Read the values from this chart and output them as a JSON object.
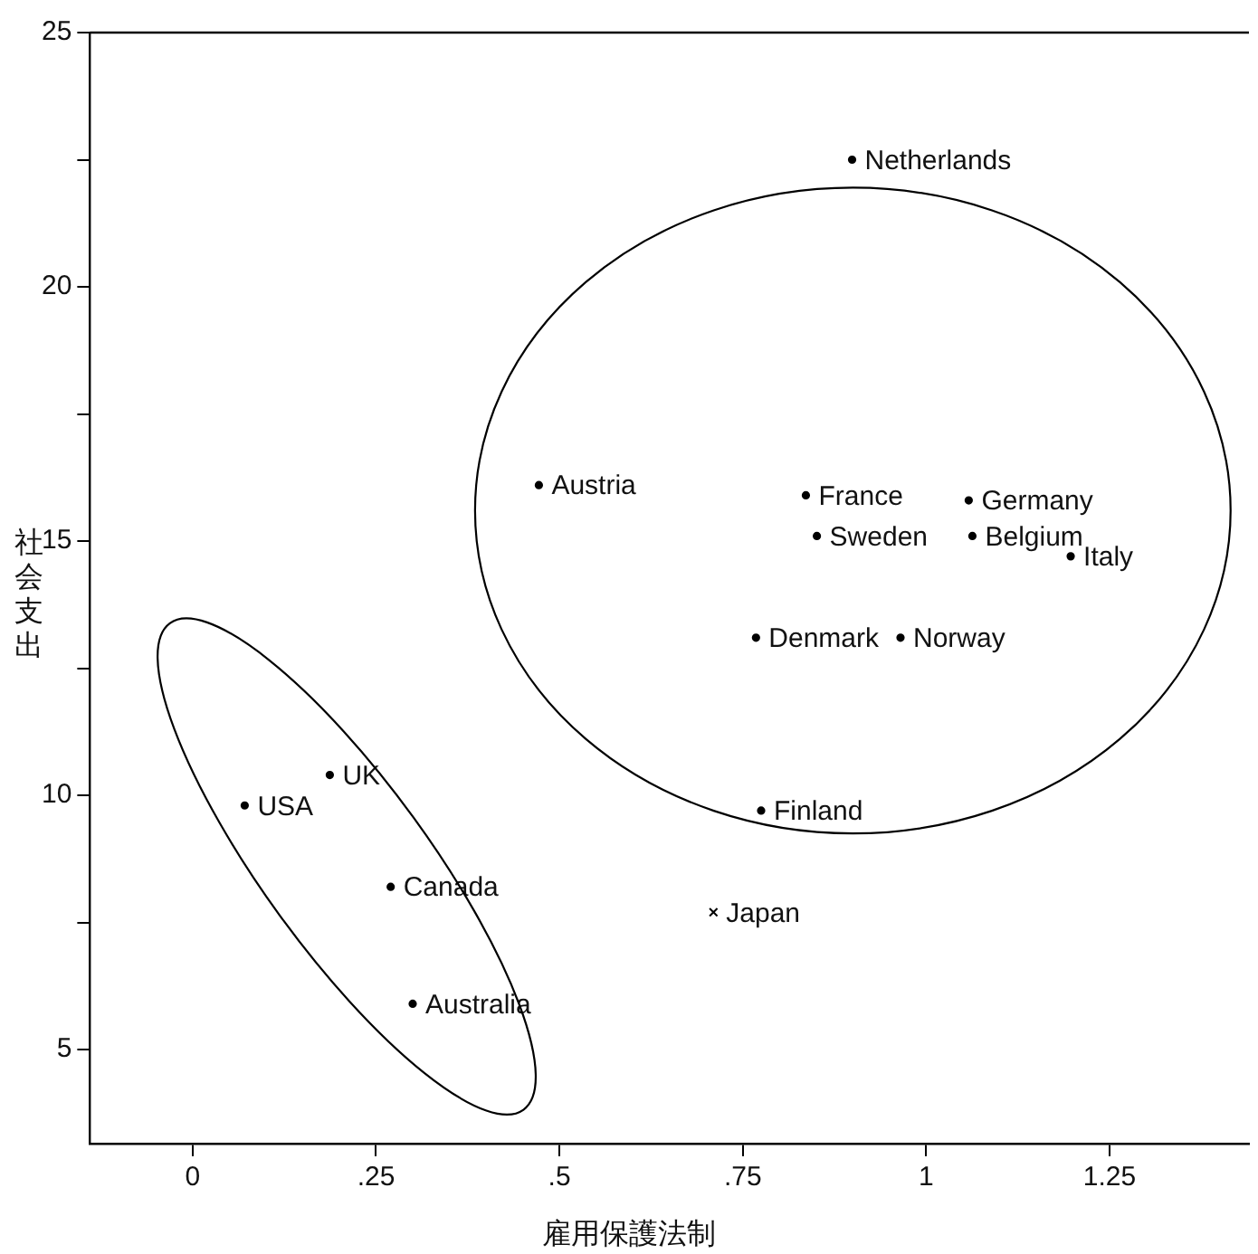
{
  "chart_data": {
    "type": "scatter",
    "xlabel": "雇用保護法制",
    "ylabel": "社会支出",
    "series": [
      {
        "color": "#000000",
        "marker": "circle",
        "x": [
          0.899,
          0.472,
          0.836,
          1.058,
          0.851,
          1.063,
          1.197,
          0.768,
          0.965,
          0.775,
          0.187,
          0.071,
          0.27,
          0.3
        ],
        "values": [
          22.5,
          16.1,
          15.9,
          15.8,
          15.1,
          15.1,
          14.7,
          13.1,
          13.1,
          9.7,
          10.4,
          9.8,
          8.2,
          5.9
        ]
      },
      {
        "color": "#000000",
        "marker": "cross",
        "x": [
          0.71
        ],
        "values": [
          7.7
        ]
      }
    ],
    "annotations": [
      {
        "text": "Netherlands",
        "x": 0.899,
        "y": 22.5
      },
      {
        "text": "Austria",
        "x": 0.472,
        "y": 16.1
      },
      {
        "text": "France",
        "x": 0.836,
        "y": 15.9
      },
      {
        "text": "Germany",
        "x": 1.058,
        "y": 15.8
      },
      {
        "text": "Sweden",
        "x": 0.851,
        "y": 15.1
      },
      {
        "text": "Belgium",
        "x": 1.063,
        "y": 15.1
      },
      {
        "text": "Italy",
        "x": 1.197,
        "y": 14.7
      },
      {
        "text": "Denmark",
        "x": 0.768,
        "y": 13.1
      },
      {
        "text": "Norway",
        "x": 0.965,
        "y": 13.1
      },
      {
        "text": "Finland",
        "x": 0.775,
        "y": 9.7
      },
      {
        "text": "UK",
        "x": 0.187,
        "y": 10.4
      },
      {
        "text": "USA",
        "x": 0.071,
        "y": 9.8
      },
      {
        "text": "Canada",
        "x": 0.27,
        "y": 8.2
      },
      {
        "text": "Australia",
        "x": 0.3,
        "y": 5.9
      },
      {
        "text": "Japan",
        "x": 0.71,
        "y": 7.7
      }
    ],
    "xlim": [
      -0.14,
      1.44
    ],
    "xticks": [
      0,
      {
        "value": 0.25,
        "label": ".25"
      },
      {
        "value": 0.5,
        "label": ".5"
      },
      {
        "value": 0.75,
        "label": ".75"
      },
      1,
      1.25
    ],
    "ylim": [
      3.15,
      25
    ],
    "yticks": [
      5,
      {
        "value": 7.5,
        "label": null
      },
      10,
      {
        "value": 12.5,
        "label": null
      },
      15,
      {
        "value": 17.5,
        "label": null
      },
      20,
      {
        "value": 22.5,
        "label": null
      },
      25
    ],
    "grid": false,
    "legend": false
  }
}
